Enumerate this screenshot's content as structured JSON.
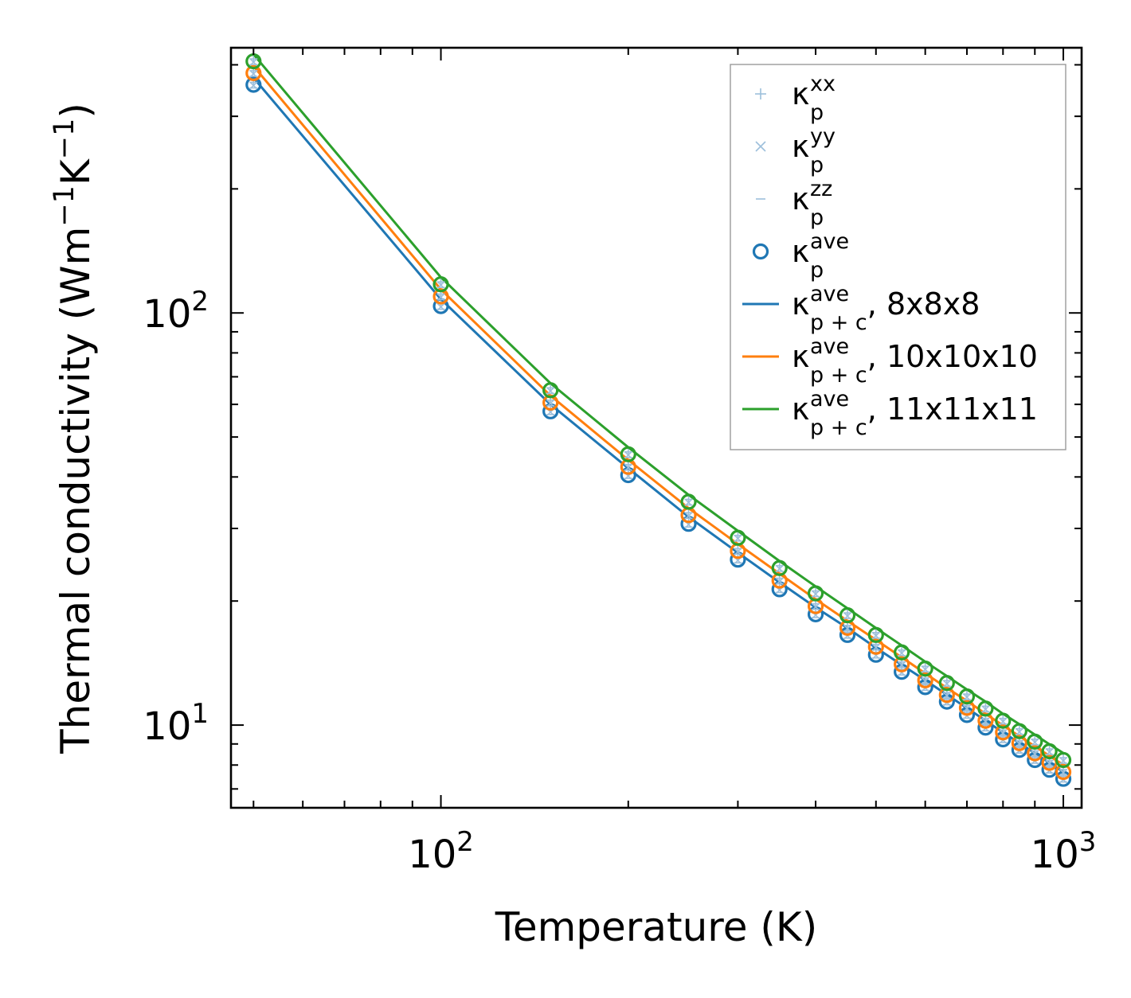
{
  "chart_data": {
    "type": "line",
    "title": "",
    "xlabel": "Temperature (K)",
    "ylabel": "Thermal conductivity (Wm",
    "ylabel_sup1": "−1",
    "ylabel_mid": "K",
    "ylabel_sup2": "−1",
    "ylabel_end": ")",
    "xscale": "log",
    "yscale": "log",
    "xlim": [
      46,
      1070
    ],
    "ylim": [
      6.3,
      440
    ],
    "xticks": [
      {
        "value": 100,
        "base": "10",
        "exp": "2"
      },
      {
        "value": 1000,
        "base": "10",
        "exp": "3"
      }
    ],
    "yticks": [
      {
        "value": 10,
        "base": "10",
        "exp": "1"
      },
      {
        "value": 100,
        "base": "10",
        "exp": "2"
      }
    ],
    "x": [
      50,
      100,
      150,
      200,
      250,
      300,
      350,
      400,
      450,
      500,
      550,
      600,
      650,
      700,
      750,
      800,
      850,
      900,
      950,
      1000
    ],
    "series": [
      {
        "name": "8x8x8",
        "color": "#1f77b4",
        "values": [
          372,
          108,
          60,
          42,
          32,
          26.2,
          22.2,
          19.3,
          17.2,
          15.4,
          14.0,
          12.85,
          11.85,
          11.0,
          10.25,
          9.6,
          9.05,
          8.55,
          8.1,
          7.7
        ]
      },
      {
        "name": "10x10x10",
        "color": "#ff7f0e",
        "values": [
          397,
          114,
          63,
          44,
          33.6,
          27.5,
          23.3,
          20.2,
          17.9,
          16.1,
          14.6,
          13.35,
          12.3,
          11.45,
          10.65,
          9.98,
          9.4,
          8.88,
          8.42,
          8.0
        ]
      },
      {
        "name": "11x11x11",
        "color": "#2ca02c",
        "values": [
          424,
          122,
          67.5,
          47.2,
          36.2,
          29.6,
          25.0,
          21.7,
          19.2,
          17.2,
          15.6,
          14.25,
          13.15,
          12.2,
          11.4,
          10.65,
          10.05,
          9.48,
          8.98,
          8.55
        ]
      }
    ],
    "legend": {
      "location": "top-right",
      "entries": [
        {
          "kind": "plus",
          "color": "#9dbfdb",
          "base": "κ",
          "sub": "p",
          "sup": "xx",
          "suffix": ""
        },
        {
          "kind": "cross",
          "color": "#9dbfdb",
          "base": "κ",
          "sub": "p",
          "sup": "yy",
          "suffix": ""
        },
        {
          "kind": "dash",
          "color": "#9dbfdb",
          "base": "κ",
          "sub": "p",
          "sup": "zz",
          "suffix": ""
        },
        {
          "kind": "circle",
          "color": "#1f77b4",
          "base": "κ",
          "sub": "p",
          "sup": "ave",
          "suffix": ""
        },
        {
          "kind": "line",
          "color": "#1f77b4",
          "base": "κ",
          "sub": "p + c",
          "sup": "ave",
          "suffix": ", 8x8x8"
        },
        {
          "kind": "line",
          "color": "#ff7f0e",
          "base": "κ",
          "sub": "p + c",
          "sup": "ave",
          "suffix": ", 10x10x10"
        },
        {
          "kind": "line",
          "color": "#2ca02c",
          "base": "κ",
          "sub": "p + c",
          "sup": "ave",
          "suffix": ", 11x11x11"
        }
      ]
    },
    "component_marker_color": "#9dbfdb",
    "grid": false
  }
}
